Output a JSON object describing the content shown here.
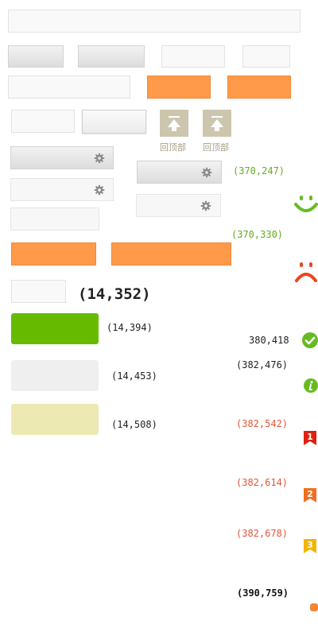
{
  "back_to_top": {
    "label": "回顶部"
  },
  "coords": {
    "green_247": "(370,247)",
    "green_330": "(370,330)",
    "big_352": "(14,352)",
    "c_394": "(14,394)",
    "c_418": "380,418",
    "c_453": "(14,453)",
    "c_476": "(382,476)",
    "c_508": "(14,508)",
    "c_542": "(382,542)",
    "c_614": "(382,614)",
    "c_678": "(382,678)",
    "c_759": "(390,759)"
  },
  "badges": {
    "one": "1",
    "two": "2",
    "three": "3"
  },
  "icons": {
    "gear": "gear-icon",
    "smile": "smile-icon",
    "sad": "sad-icon",
    "check": "check-circle-icon",
    "info": "info-circle-icon",
    "arrow_up": "arrow-up-icon"
  },
  "colors": {
    "orange": "#ff9a4a",
    "green_block": "#66bb00",
    "light_gray_block": "#efefef",
    "pale_yellow_block": "#ede9b2",
    "green_text": "#66aa22",
    "red_text": "#e2553a",
    "badge_red": "#dd2211",
    "badge_orange": "#f07020",
    "badge_yellow": "#f4b400",
    "icon_green": "#66bb22",
    "icon_red": "#ee4422"
  }
}
